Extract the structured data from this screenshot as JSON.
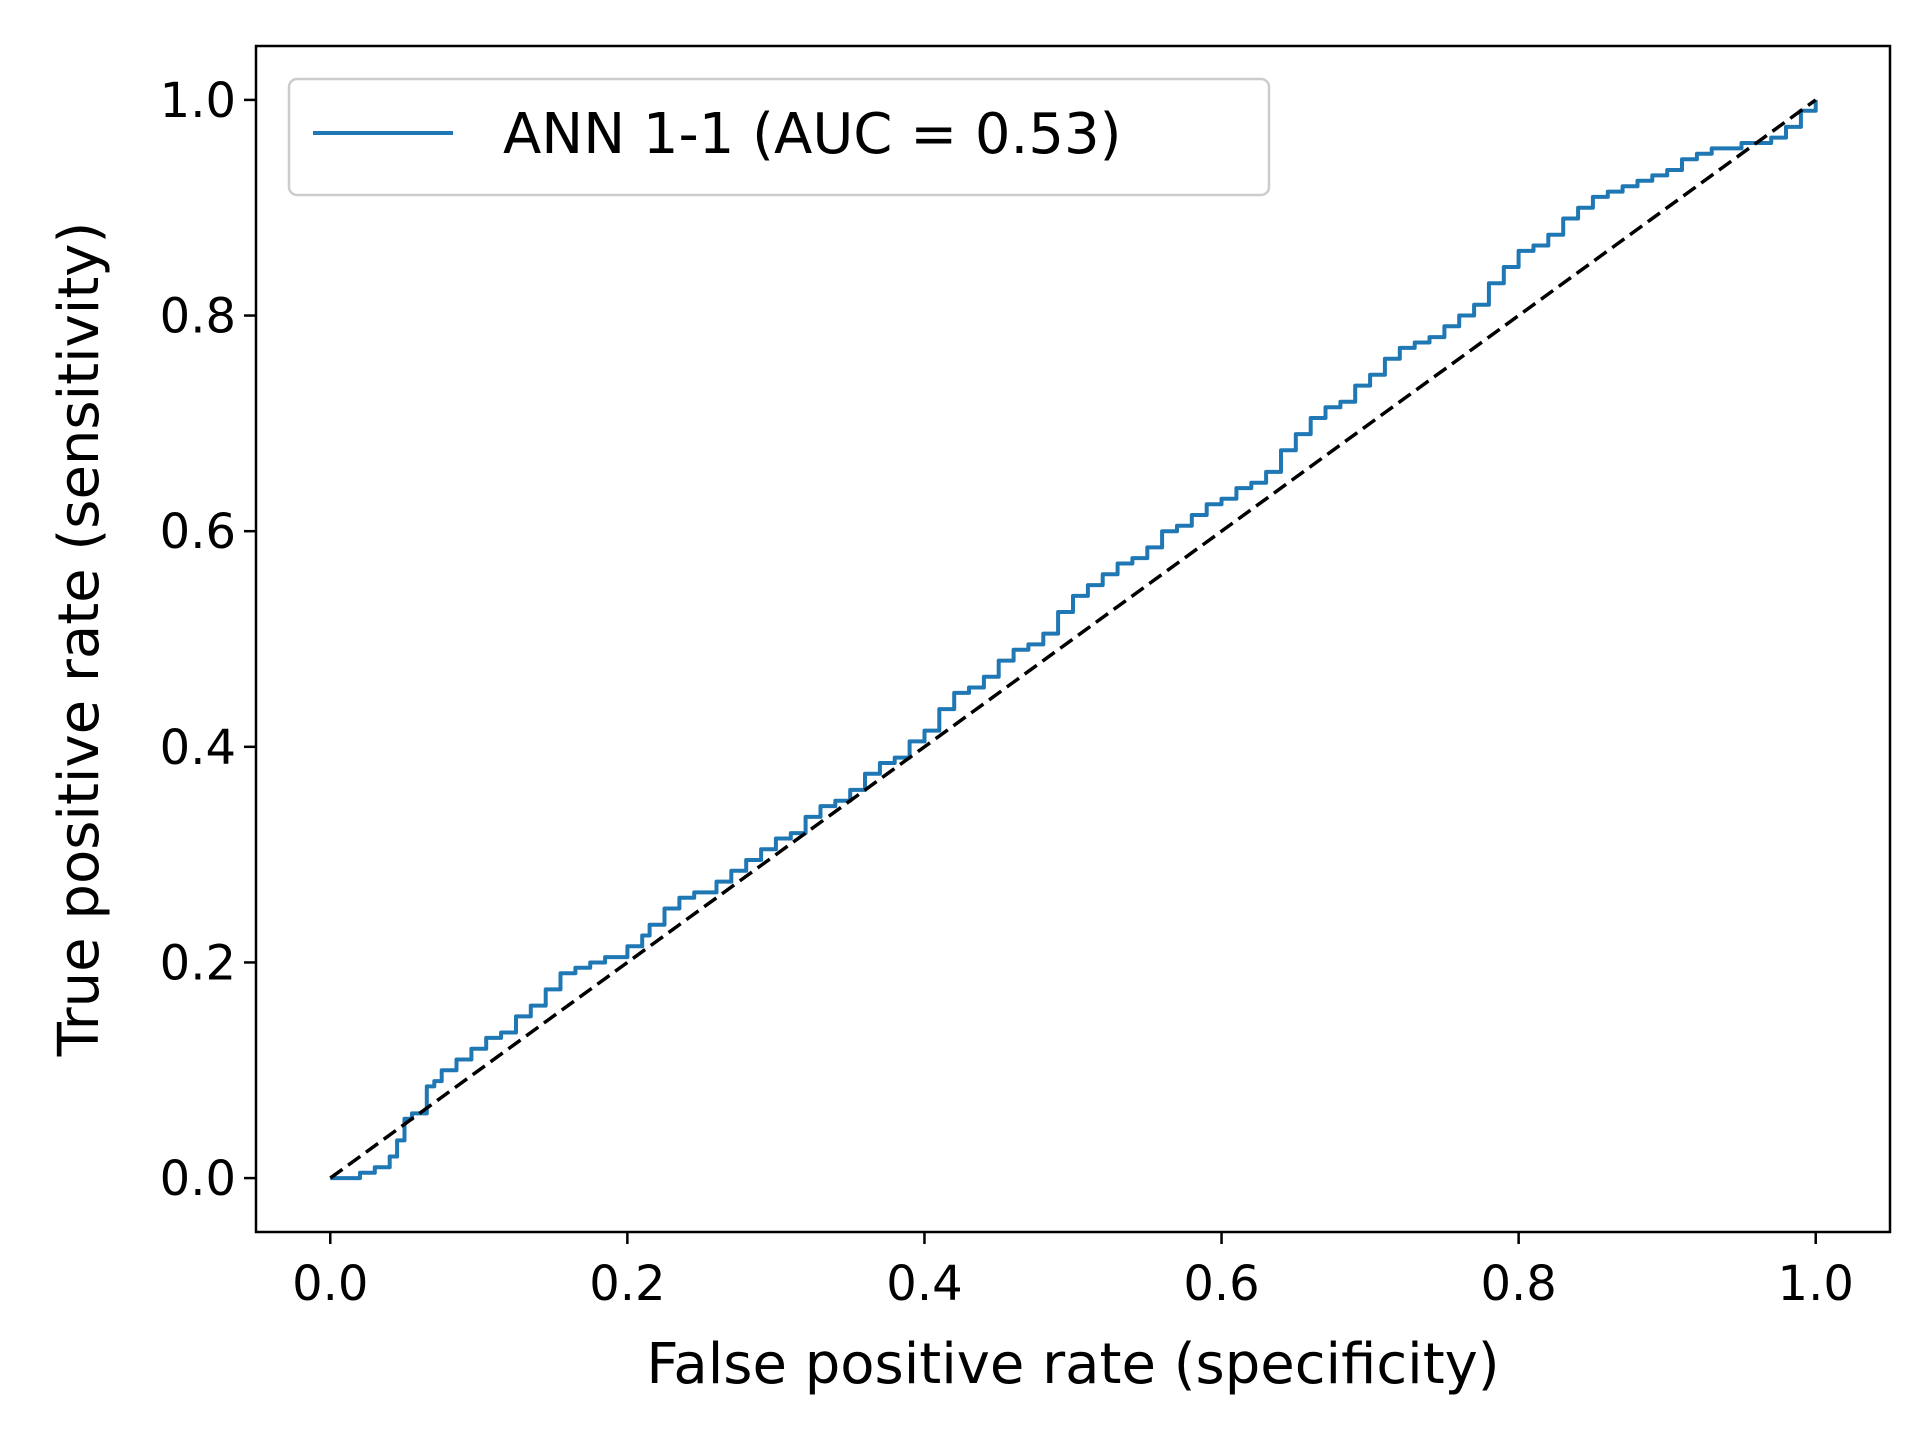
{
  "chart_data": {
    "type": "line",
    "title": "",
    "xlabel": "False positive rate (specificity)",
    "ylabel": "True positive rate (sensitivity)",
    "xlim": [
      -0.05,
      1.05
    ],
    "ylim": [
      -0.05,
      1.05
    ],
    "grid": false,
    "legend": {
      "placement": "top-left"
    },
    "x_ticks": [
      "0.0",
      "0.2",
      "0.4",
      "0.6",
      "0.8",
      "1.0"
    ],
    "y_ticks": [
      "0.0",
      "0.2",
      "0.4",
      "0.6",
      "0.8",
      "1.0"
    ],
    "series": [
      {
        "name": "ANN 1-1 (AUC = 0.53)",
        "color": "#1f77b4",
        "style": "solid",
        "step": true,
        "x": [
          0.0,
          0.02,
          0.03,
          0.04,
          0.045,
          0.05,
          0.055,
          0.065,
          0.07,
          0.075,
          0.085,
          0.095,
          0.105,
          0.115,
          0.125,
          0.135,
          0.145,
          0.155,
          0.165,
          0.175,
          0.185,
          0.2,
          0.21,
          0.215,
          0.225,
          0.235,
          0.245,
          0.26,
          0.27,
          0.28,
          0.29,
          0.3,
          0.31,
          0.32,
          0.33,
          0.34,
          0.35,
          0.36,
          0.37,
          0.38,
          0.39,
          0.4,
          0.41,
          0.42,
          0.43,
          0.44,
          0.45,
          0.46,
          0.47,
          0.48,
          0.49,
          0.5,
          0.51,
          0.52,
          0.53,
          0.54,
          0.55,
          0.56,
          0.57,
          0.58,
          0.59,
          0.6,
          0.61,
          0.62,
          0.63,
          0.64,
          0.65,
          0.66,
          0.67,
          0.68,
          0.69,
          0.7,
          0.71,
          0.72,
          0.73,
          0.74,
          0.75,
          0.76,
          0.77,
          0.78,
          0.79,
          0.8,
          0.81,
          0.82,
          0.83,
          0.84,
          0.85,
          0.86,
          0.87,
          0.88,
          0.89,
          0.9,
          0.91,
          0.92,
          0.93,
          0.94,
          0.95,
          0.96,
          0.97,
          0.98,
          0.99,
          1.0
        ],
        "y": [
          0.0,
          0.005,
          0.01,
          0.02,
          0.035,
          0.055,
          0.06,
          0.085,
          0.09,
          0.1,
          0.11,
          0.12,
          0.13,
          0.135,
          0.15,
          0.16,
          0.175,
          0.19,
          0.195,
          0.2,
          0.205,
          0.215,
          0.225,
          0.235,
          0.25,
          0.26,
          0.265,
          0.275,
          0.285,
          0.295,
          0.305,
          0.315,
          0.32,
          0.335,
          0.345,
          0.35,
          0.36,
          0.375,
          0.385,
          0.39,
          0.405,
          0.415,
          0.435,
          0.45,
          0.455,
          0.465,
          0.48,
          0.49,
          0.495,
          0.505,
          0.525,
          0.54,
          0.55,
          0.56,
          0.57,
          0.575,
          0.585,
          0.6,
          0.605,
          0.615,
          0.625,
          0.63,
          0.64,
          0.645,
          0.655,
          0.675,
          0.69,
          0.705,
          0.715,
          0.72,
          0.735,
          0.745,
          0.76,
          0.77,
          0.775,
          0.78,
          0.79,
          0.8,
          0.81,
          0.83,
          0.845,
          0.86,
          0.865,
          0.875,
          0.89,
          0.9,
          0.91,
          0.915,
          0.92,
          0.925,
          0.93,
          0.935,
          0.945,
          0.95,
          0.955,
          0.955,
          0.96,
          0.96,
          0.965,
          0.975,
          0.99,
          1.0
        ]
      },
      {
        "name": "",
        "color": "#000000",
        "style": "dashed",
        "step": false,
        "x": [
          0.0,
          1.0
        ],
        "y": [
          0.0,
          1.0
        ]
      }
    ]
  }
}
